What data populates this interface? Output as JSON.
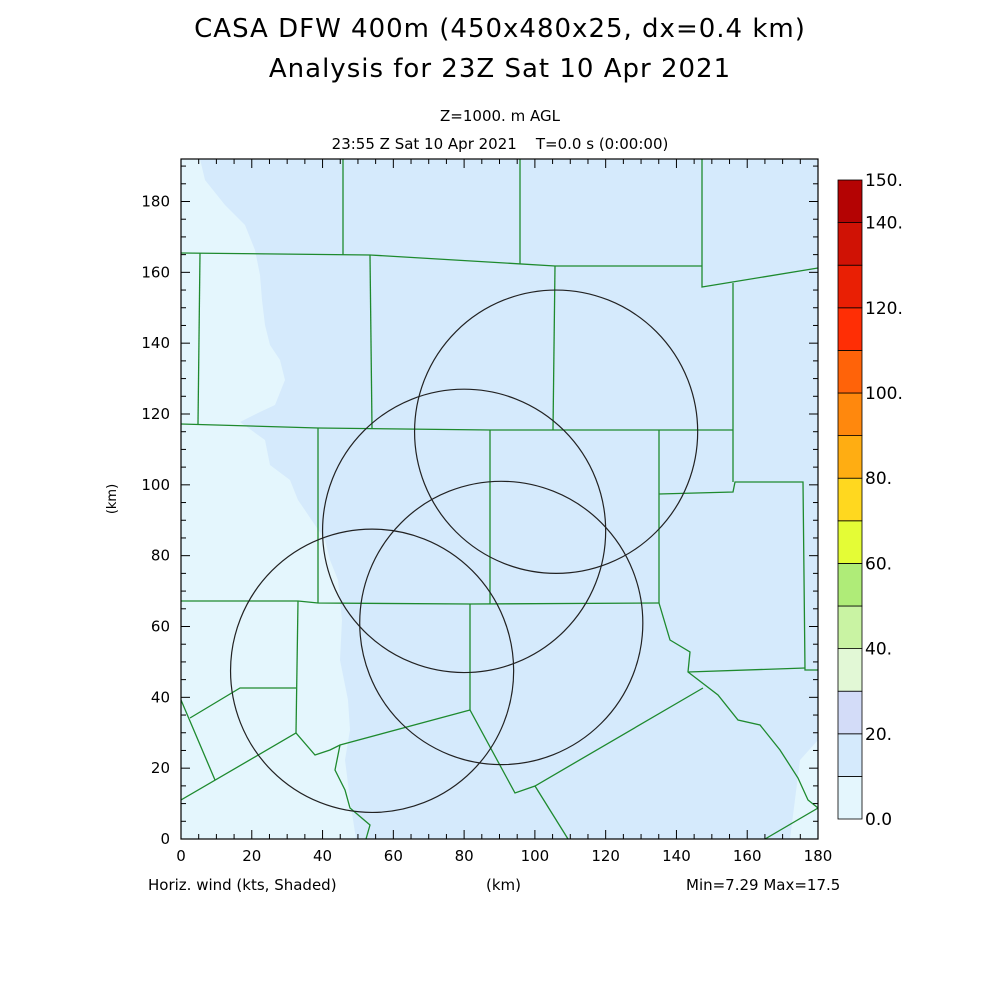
{
  "header": {
    "title_line1": "CASA DFW 400m (450x480x25, dx=0.4 km)",
    "title_line2": "Analysis for 23Z Sat 10 Apr 2021",
    "level": "Z=1000. m AGL",
    "time": "23:55 Z Sat 10 Apr 2021    T=0.0 s (0:00:00)"
  },
  "footer": {
    "variable": "Horiz. wind (kts, Shaded)",
    "xunit": "(km)",
    "minmax": "Min=7.29 Max=17.5"
  },
  "chart_data": {
    "type": "heatmap",
    "xlabel": "(km)",
    "ylabel": "(km)",
    "xlim": [
      0,
      180
    ],
    "ylim": [
      0,
      192
    ],
    "xticks": [
      0,
      20,
      40,
      60,
      80,
      100,
      120,
      140,
      160,
      180
    ],
    "yticks": [
      0,
      20,
      40,
      60,
      80,
      100,
      120,
      140,
      160,
      180
    ],
    "field_min": 7.29,
    "field_max": 17.5,
    "colorbar": {
      "boundaries": [
        0,
        10,
        20,
        30,
        40,
        50,
        60,
        70,
        80,
        90,
        100,
        110,
        120,
        130,
        140,
        150
      ],
      "labels": [
        "0.0",
        "20.",
        "40.",
        "60.",
        "80.",
        "100.",
        "120.",
        "140.",
        "150."
      ],
      "label_values": [
        0,
        20,
        40,
        60,
        80,
        100,
        120,
        140,
        150
      ],
      "colors": [
        "#e4f6fd",
        "#d5eafc",
        "#d3dcf8",
        "#e2f8d6",
        "#c9f3a3",
        "#afec78",
        "#e4fc36",
        "#ffd81f",
        "#ffad12",
        "#ff880d",
        "#ff6309",
        "#ff2e05",
        "#e91f04",
        "#d01205",
        "#b40303"
      ]
    },
    "radar_rings": [
      {
        "cx": 54,
        "cy": 47.5,
        "r": 40
      },
      {
        "cx": 80,
        "cy": 87,
        "r": 40
      },
      {
        "cx": 106,
        "cy": 115,
        "r": 40
      },
      {
        "cx": 90.5,
        "cy": 61,
        "r": 40
      }
    ]
  }
}
